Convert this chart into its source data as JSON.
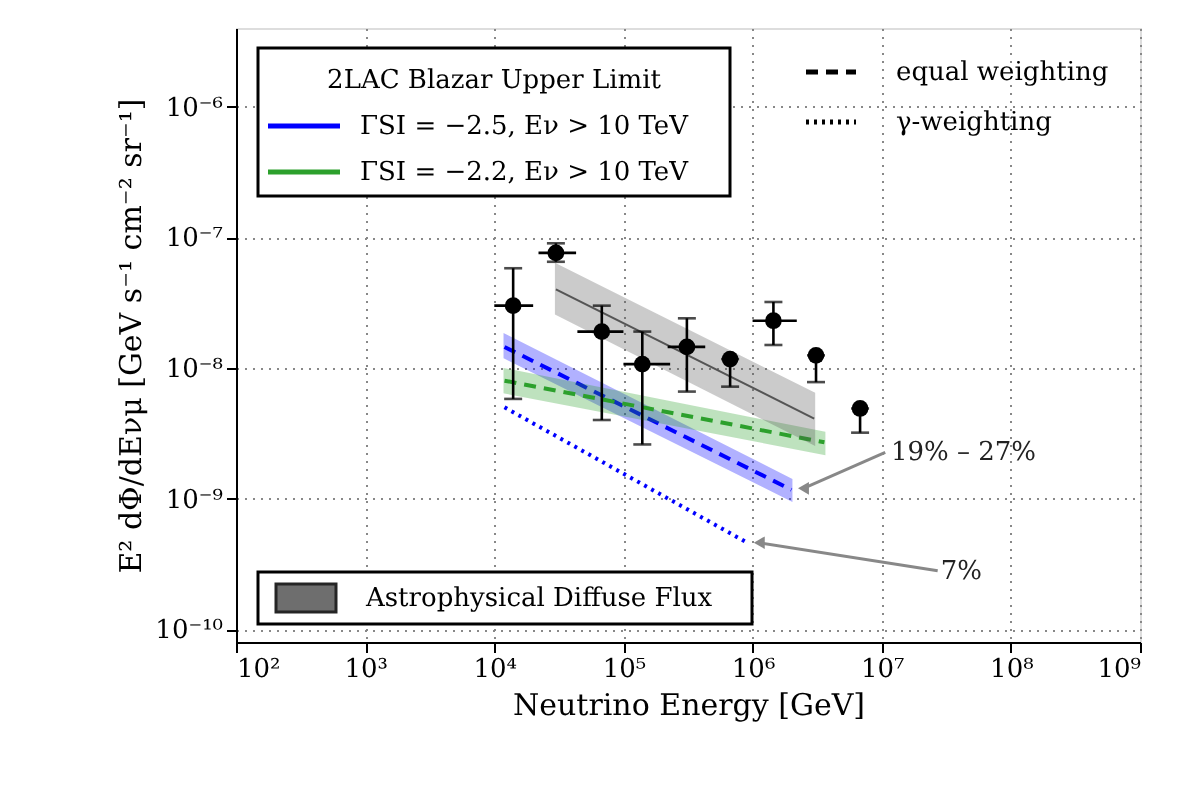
{
  "chart_data": {
    "type": "line",
    "xlabel": "Neutrino Energy [GeV]",
    "ylabel": "E² dΦ/dEνμ [GeV s⁻¹ cm⁻² sr⁻¹]",
    "legend_title": "2LAC Blazar Upper Limit",
    "log": "xy",
    "grid": true,
    "legend": "left",
    "xlim": [
      100,
      1000000000
    ],
    "xticks": [
      {
        "value": 100,
        "label": "10²"
      },
      {
        "value": 1000,
        "label": "10³"
      },
      {
        "value": 10000,
        "label": "10⁴"
      },
      {
        "value": 100000,
        "label": "10⁵"
      },
      {
        "value": 1000000,
        "label": "10⁶"
      },
      {
        "value": 10000000,
        "label": "10⁷"
      },
      {
        "value": 100000000,
        "label": "10⁸"
      },
      {
        "value": 1000000000,
        "label": "10⁹"
      }
    ],
    "ylim": [
      8e-11,
      4e-06
    ],
    "yticks": [
      {
        "value": 1e-10,
        "label": "10⁻¹⁰"
      },
      {
        "value": 1e-09,
        "label": "10⁻⁹"
      },
      {
        "value": 1e-08,
        "label": "10⁻⁸"
      },
      {
        "value": 1e-07,
        "label": "10⁻⁷"
      },
      {
        "value": 1e-06,
        "label": "10⁻⁶"
      }
    ],
    "series": [
      {
        "name": "ΓSI = −2.5, Eν > 10 TeV",
        "type": "line",
        "color": "#0000ff",
        "line_style": "dashed",
        "x": [
          12000,
          2000000
        ],
        "values": [
          1.45e-08,
          1.17e-09
        ],
        "lower": [
          1.2e-08,
          9.7e-10
        ],
        "upper": [
          1.8e-08,
          1.4e-09
        ]
      },
      {
        "name": "ΓSI = −2.2, Eν > 10 TeV",
        "type": "line",
        "color": "#2ca02c",
        "line_style": "dashed",
        "x": [
          12000,
          3600000
        ],
        "values": [
          8e-09,
          2.7e-09
        ],
        "lower": [
          6.5e-09,
          2.2e-09
        ],
        "upper": [
          9.8e-09,
          3.2e-09
        ]
      },
      {
        "type": "line",
        "color": "#0000ff",
        "line_style": "dotted",
        "x": [
          12000,
          910000
        ],
        "values": [
          5e-09,
          4.6e-10
        ]
      },
      {
        "name": "Astrophysical Diffuse Flux",
        "color": "#555555",
        "x": [
          30000,
          3000000
        ],
        "values": [
          4e-08,
          4.1e-09
        ],
        "lower": [
          2.6e-08,
          2.6e-09
        ],
        "upper": [
          6.2e-08,
          6.4e-09
        ]
      },
      {
        "type": "scatter",
        "color": "#000000",
        "marker": "circle",
        "x": [
          14000,
          30000,
          68000,
          140000,
          310000,
          1450000
        ],
        "values": [
          3e-08,
          7.6e-08,
          1.9e-08,
          1.07e-08,
          1.45e-08,
          2.3e-08
        ],
        "errors": [
          [
            5.8e-09,
            5.8e-08
          ],
          [
            6.5e-08,
            9e-08
          ],
          [
            4e-09,
            3e-08
          ],
          [
            2.6e-09,
            1.9e-08
          ],
          [
            6.6e-09,
            2.4e-08
          ],
          [
            1.5e-08,
            3.2e-08
          ]
        ],
        "xerrors": [
          [
            10000,
            20000
          ],
          [
            22000,
            43000
          ],
          [
            44000,
            100000
          ],
          [
            100000,
            230000
          ],
          [
            220000,
            430000
          ],
          [
            1000000,
            2200000
          ]
        ]
      },
      {
        "type": "scatter",
        "color": "#000000",
        "marker": "circle",
        "x": [
          670000,
          3100000,
          6800000
        ],
        "values": [
          1.17e-08,
          1.25e-08,
          4.9e-09
        ],
        "errors": [
          [
            7.2e-09,
            1.17e-08
          ],
          [
            7.8e-09,
            1.25e-08
          ],
          [
            3.2e-09,
            4.9e-09
          ]
        ]
      }
    ],
    "annotations": [
      "equal weighting",
      "γ-weighting",
      {
        "text": "19% – 27%",
        "x": 2000000,
        "y": 1.2e-09
      },
      {
        "text": "7%",
        "x": 910000,
        "y": 4.6e-10
      }
    ]
  }
}
